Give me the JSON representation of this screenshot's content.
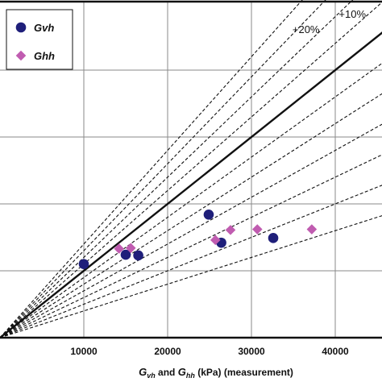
{
  "chart_data": {
    "type": "scatter",
    "xlabel": {
      "parts": [
        {
          "t": "G",
          "style": "italic"
        },
        {
          "t": "vh",
          "style": "italic-sub"
        },
        {
          "t": " and ",
          "style": "plain"
        },
        {
          "t": "G",
          "style": "italic"
        },
        {
          "t": "hh",
          "style": "italic-sub"
        },
        {
          "t": " (kPa) (measurement)",
          "style": "plain"
        }
      ]
    },
    "xlim": [
      0,
      45000
    ],
    "ylim": [
      0,
      45000
    ],
    "x_ticks": [
      {
        "value": 10000,
        "label": "10000"
      },
      {
        "value": 20000,
        "label": "20000"
      },
      {
        "value": 30000,
        "label": "30000"
      },
      {
        "value": 40000,
        "label": "40000"
      }
    ],
    "grid": true,
    "legend": {
      "position": "top-left",
      "items": [
        {
          "label": "Gvh",
          "marker": "circle",
          "color": "#1f1f7a"
        },
        {
          "label": "Ghh",
          "marker": "diamond",
          "color": "#c05cb0"
        }
      ]
    },
    "series": [
      {
        "name": "Gvh",
        "marker": "circle",
        "color": "#1f1f7a",
        "points": [
          [
            10000,
            11000
          ],
          [
            15000,
            12400
          ],
          [
            16500,
            12300
          ],
          [
            24900,
            18400
          ],
          [
            26400,
            14200
          ],
          [
            32600,
            14900
          ]
        ]
      },
      {
        "name": "Ghh",
        "marker": "diamond",
        "color": "#c05cb0",
        "points": [
          [
            14200,
            13300
          ],
          [
            15600,
            13400
          ],
          [
            25700,
            14600
          ],
          [
            27500,
            16100
          ],
          [
            30700,
            16200
          ],
          [
            37200,
            16200
          ]
        ]
      }
    ],
    "reference_lines": [
      {
        "slope": 1.0,
        "style": "solid",
        "label": ""
      },
      {
        "slope": 1.2,
        "style": "dashed",
        "label": "+20%"
      },
      {
        "slope": 1.1,
        "style": "dashed",
        "label": "+10%"
      },
      {
        "slope": 1.3,
        "style": "dashed",
        "label": ""
      },
      {
        "slope": 1.4,
        "style": "dashed",
        "label": ""
      },
      {
        "slope": 0.9,
        "style": "dashed",
        "label": ""
      },
      {
        "slope": 0.8,
        "style": "dashed",
        "label": ""
      },
      {
        "slope": 0.7,
        "style": "dashed",
        "label": ""
      },
      {
        "slope": 0.6,
        "style": "dashed",
        "label": ""
      },
      {
        "slope": 0.5,
        "style": "dashed",
        "label": ""
      },
      {
        "slope": 0.4,
        "style": "dashed",
        "label": ""
      }
    ]
  }
}
